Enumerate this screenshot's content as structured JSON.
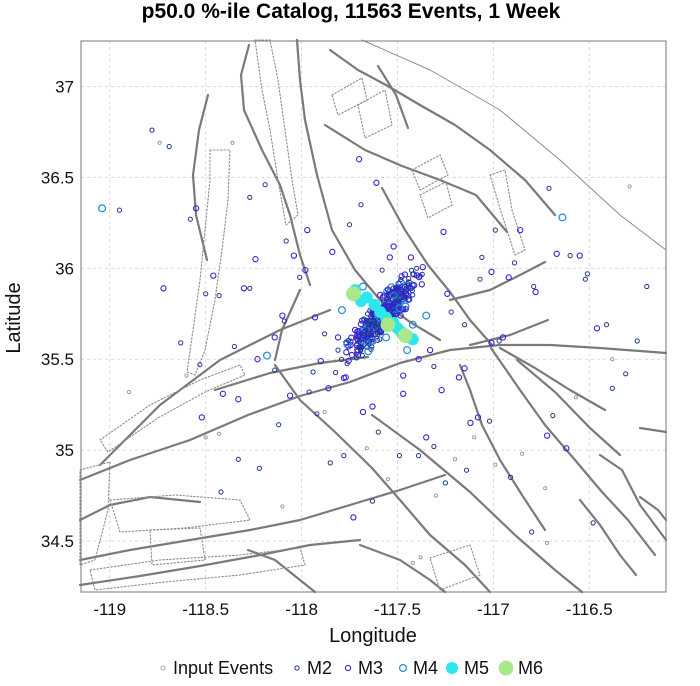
{
  "chart_data": {
    "type": "scatter",
    "title": "p50.0 %-ile Catalog, 11563 Events, 1 Week",
    "xlabel": "Longitude",
    "ylabel": "Latitude",
    "xlim": [
      -119.15,
      -116.1
    ],
    "ylim": [
      34.22,
      37.25
    ],
    "xticks": [
      -119,
      -118.5,
      -118,
      -117.5,
      -117,
      -116.5
    ],
    "xtick_labels": [
      "-119",
      "-118.5",
      "-118",
      "-117.5",
      "-117",
      "-116.5"
    ],
    "yticks": [
      34.5,
      35,
      35.5,
      36,
      36.5,
      37
    ],
    "ytick_labels": [
      "34.5",
      "35",
      "35.5",
      "36",
      "36.5",
      "37"
    ],
    "grid": true,
    "legend_position": "bottom",
    "legend": [
      {
        "label": "Input Events",
        "marker": "input"
      },
      {
        "label": "M2",
        "marker": "m2"
      },
      {
        "label": "M3",
        "marker": "m3"
      },
      {
        "label": "M4",
        "marker": "m4"
      },
      {
        "label": "M5",
        "marker": "m5"
      },
      {
        "label": "M6",
        "marker": "m6"
      }
    ],
    "colors": {
      "input": "#8c8c8c",
      "m2": "#1c3a8a",
      "m3": "#3a1fd6",
      "m4": "#1e8ad6",
      "m5": "#2ee6ee",
      "m6": "#a8e88c",
      "fault": "#7a7a7a",
      "grid": "#d9d9d9"
    },
    "cluster": {
      "center": [
        -117.58,
        35.74
      ],
      "axis_deg": -55,
      "spread_along": 0.19,
      "spread_across": 0.07,
      "count": 420
    },
    "series": [
      {
        "name": "M5",
        "x": [
          -117.72,
          -117.66,
          -117.62,
          -117.59,
          -117.56,
          -117.52,
          -117.5,
          -117.48,
          -117.45,
          -117.42,
          -117.69
        ],
        "y": [
          35.88,
          35.84,
          35.8,
          35.76,
          35.73,
          35.7,
          35.67,
          35.65,
          35.63,
          35.61,
          35.82
        ]
      },
      {
        "name": "M6",
        "x": [
          -117.73,
          -117.55,
          -117.46
        ],
        "y": [
          35.86,
          35.69,
          35.63
        ]
      },
      {
        "name": "M4",
        "x": [
          -119.04,
          -118.18,
          -117.79,
          -117.68,
          -117.56,
          -117.49,
          -117.42,
          -117.35,
          -117.63,
          -117.52,
          -116.64,
          -117.45
        ],
        "y": [
          36.33,
          35.52,
          35.77,
          35.9,
          35.62,
          35.78,
          35.69,
          35.74,
          35.6,
          35.85,
          36.28,
          35.55
        ]
      },
      {
        "name": "M3",
        "x": [
          -118.72,
          -118.55,
          -118.46,
          -118.41,
          -118.3,
          -118.23,
          -118.14,
          -118.06,
          -117.98,
          -117.93,
          -117.84,
          -117.77,
          -117.63,
          -117.47,
          -117.39,
          -117.33,
          -117.24,
          -117.18,
          -117.08,
          -117.01,
          -116.95,
          -116.86,
          -116.78,
          -116.67,
          -116.55,
          -116.46,
          -117.97,
          -117.54,
          -117.26,
          -117.81,
          -117.9,
          -117.15,
          -117.01,
          -116.92,
          -118.1,
          -118.33,
          -117.68,
          -117.35,
          -117.12,
          -117.7,
          -117.61,
          -117.52,
          -117.43,
          -116.72,
          -118.52,
          -118.24,
          -117.86,
          -117.47,
          -117.27,
          -118.04,
          -117.73,
          -116.62
        ],
        "y": [
          35.89,
          36.33,
          35.96,
          35.31,
          35.89,
          35.5,
          35.62,
          35.3,
          35.99,
          35.73,
          36.09,
          35.4,
          35.24,
          35.31,
          35.5,
          35.55,
          35.86,
          35.4,
          35.18,
          35.59,
          35.62,
          36.21,
          35.87,
          36.08,
          36.07,
          35.67,
          36.21,
          36.06,
          36.2,
          35.62,
          35.49,
          35.45,
          35.98,
          35.95,
          35.74,
          35.28,
          35.21,
          35.07,
          35.15,
          36.6,
          36.47,
          36.12,
          36.06,
          35.08,
          35.18,
          36.05,
          35.34,
          35.41,
          35.33,
          36.07,
          34.63,
          35.01
        ],
        "note": ""
      },
      {
        "name": "M2",
        "x": [
          -118.78,
          -118.69,
          -118.53,
          -118.43,
          -118.35,
          -118.27,
          -118.22,
          -118.14,
          -118.09,
          -118.01,
          -117.94,
          -117.88,
          -117.81,
          -117.75,
          -117.69,
          -117.4,
          -117.31,
          -117.22,
          -117.15,
          -117.06,
          -116.97,
          -116.89,
          -116.79,
          -116.71,
          -116.6,
          -116.52,
          -116.41,
          -116.31,
          -116.2,
          -118.63,
          -118.58,
          -118.5,
          -118.27,
          -118.19,
          -117.96,
          -117.58,
          -117.07,
          -116.99,
          -116.51,
          -116.25,
          -118.42,
          -117.85,
          -117.49,
          -117.14,
          -116.91,
          -116.69,
          -116.48,
          -116.38,
          -117.78,
          -117.31,
          -117.63,
          -118.12,
          -118.33,
          -117.39,
          -116.8,
          -117.92,
          -117.02,
          -118.95,
          -118.08,
          -117.6,
          -117.25
        ],
        "y": [
          36.76,
          36.67,
          35.47,
          35.85,
          35.57,
          35.89,
          34.9,
          35.44,
          35.71,
          35.95,
          35.43,
          35.64,
          35.55,
          36.24,
          36.35,
          36.0,
          35.46,
          35.76,
          35.69,
          36.06,
          35.6,
          36.03,
          35.9,
          36.44,
          36.07,
          35.94,
          35.69,
          35.42,
          35.9,
          35.59,
          36.27,
          35.86,
          36.39,
          36.46,
          35.32,
          35.99,
          35.94,
          36.21,
          35.97,
          35.6,
          34.77,
          34.93,
          34.97,
          34.89,
          34.85,
          35.19,
          34.6,
          35.34,
          34.97,
          35.02,
          34.72,
          35.14,
          34.95,
          34.97,
          34.55,
          35.2,
          35.16,
          36.32,
          36.15,
          35.1,
          34.82
        ]
      },
      {
        "name": "Input Events",
        "x": [
          -118.74,
          -118.9,
          -118.36,
          -117.88,
          -118.6,
          -117.2,
          -116.73,
          -116.38,
          -117.3,
          -117.42,
          -116.85,
          -116.29,
          -118.43,
          -116.99,
          -117.1,
          -117.66,
          -118.5,
          -117.38,
          -117.55,
          -116.57,
          -118.1,
          -116.72
        ],
        "y": [
          36.69,
          35.32,
          36.69,
          35.21,
          35.41,
          34.95,
          34.79,
          35.5,
          34.75,
          34.38,
          34.98,
          36.45,
          35.09,
          34.92,
          35.07,
          35.01,
          35.07,
          34.41,
          34.84,
          35.29,
          34.69,
          34.49
        ]
      }
    ]
  }
}
